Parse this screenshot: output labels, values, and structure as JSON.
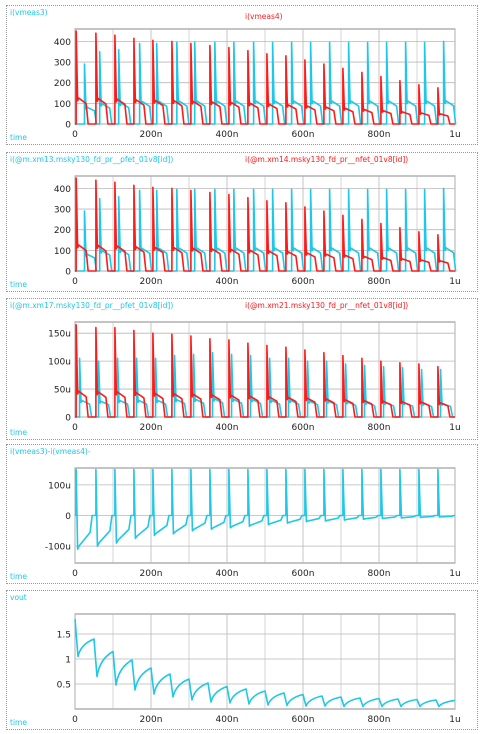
{
  "colors": {
    "cyan": "#1ec8e6",
    "red": "#ff1a1a",
    "grid": "#b8b8b8"
  },
  "x_axis_label": "time",
  "panels": [
    {
      "left_label": "i(vmeas3)",
      "right_label": "i(vmeas4)"
    },
    {
      "left_label": "i(@m.xm13.msky130_fd_pr__pfet_01v8[id])",
      "right_label": "i(@m.xm14.msky130_fd_pr__nfet_01v8[id])"
    },
    {
      "left_label": "i(@m.xm17.msky130_fd_pr__pfet_01v8[id])",
      "right_label": "i(@m.xm21.msky130_fd_pr__nfet_01v8[id])"
    },
    {
      "left_label": "i(vmeas3)-i(vmeas4)-",
      "right_label": ""
    },
    {
      "left_label": "vout",
      "right_label": ""
    }
  ],
  "chart_data": [
    {
      "type": "line",
      "x_ticks": [
        "0",
        "200n",
        "400n",
        "600n",
        "800n",
        "1u"
      ],
      "y_ticks": [
        "0",
        "100",
        "200",
        "300",
        "400"
      ],
      "xlim": [
        0,
        1000
      ],
      "ylim": [
        0,
        460
      ],
      "grid": true,
      "series": [
        {
          "name": "i(vmeas3)",
          "color": "#1ec8e6",
          "spikes": [
            [
              25,
              290
            ],
            [
              65,
              350
            ],
            [
              115,
              360
            ],
            [
              170,
              390
            ],
            [
              215,
              390
            ],
            [
              268,
              395
            ],
            [
              315,
              395
            ],
            [
              368,
              395
            ],
            [
              418,
              395
            ],
            [
              470,
              395
            ],
            [
              520,
              395
            ],
            [
              570,
              395
            ],
            [
              620,
              395
            ],
            [
              670,
              395
            ],
            [
              720,
              395
            ],
            [
              770,
              395
            ],
            [
              820,
              395
            ],
            [
              870,
              395
            ],
            [
              920,
              395
            ],
            [
              970,
              400
            ]
          ]
        },
        {
          "name": "i(vmeas4)",
          "color": "#ff1a1a",
          "spikes": [
            [
              3,
              450
            ],
            [
              55,
              440
            ],
            [
              105,
              430
            ],
            [
              155,
              415
            ],
            [
              205,
              405
            ],
            [
              255,
              400
            ],
            [
              305,
              390
            ],
            [
              355,
              380
            ],
            [
              405,
              370
            ],
            [
              455,
              355
            ],
            [
              505,
              340
            ],
            [
              555,
              330
            ],
            [
              605,
              310
            ],
            [
              655,
              290
            ],
            [
              705,
              270
            ],
            [
              755,
              250
            ],
            [
              805,
              230
            ],
            [
              855,
              210
            ],
            [
              905,
              190
            ],
            [
              955,
              175
            ]
          ]
        }
      ]
    },
    {
      "type": "line",
      "x_ticks": [
        "0",
        "200n",
        "400n",
        "600n",
        "800n",
        "1u"
      ],
      "y_ticks": [
        "0",
        "100",
        "200",
        "300",
        "400"
      ],
      "xlim": [
        0,
        1000
      ],
      "ylim": [
        0,
        460
      ],
      "grid": true,
      "series": [
        {
          "name": "i(@m.xm13.msky130_fd_pr__pfet_01v8[id])",
          "color": "#1ec8e6",
          "spikes": [
            [
              25,
              290
            ],
            [
              65,
              350
            ],
            [
              115,
              360
            ],
            [
              170,
              390
            ],
            [
              215,
              390
            ],
            [
              268,
              395
            ],
            [
              315,
              395
            ],
            [
              368,
              395
            ],
            [
              418,
              395
            ],
            [
              470,
              395
            ],
            [
              520,
              395
            ],
            [
              570,
              395
            ],
            [
              620,
              395
            ],
            [
              670,
              395
            ],
            [
              720,
              395
            ],
            [
              770,
              395
            ],
            [
              820,
              395
            ],
            [
              870,
              395
            ],
            [
              920,
              395
            ],
            [
              970,
              400
            ]
          ]
        },
        {
          "name": "i(@m.xm14.msky130_fd_pr__nfet_01v8[id])",
          "color": "#ff1a1a",
          "spikes": [
            [
              3,
              450
            ],
            [
              55,
              440
            ],
            [
              105,
              430
            ],
            [
              155,
              415
            ],
            [
              205,
              405
            ],
            [
              255,
              400
            ],
            [
              305,
              390
            ],
            [
              355,
              380
            ],
            [
              405,
              370
            ],
            [
              455,
              355
            ],
            [
              505,
              340
            ],
            [
              555,
              330
            ],
            [
              605,
              310
            ],
            [
              655,
              290
            ],
            [
              705,
              270
            ],
            [
              755,
              250
            ],
            [
              805,
              230
            ],
            [
              855,
              210
            ],
            [
              905,
              190
            ],
            [
              955,
              175
            ]
          ]
        }
      ]
    },
    {
      "type": "line",
      "x_ticks": [
        "0",
        "200n",
        "400n",
        "600n",
        "800n",
        "1u"
      ],
      "y_ticks": [
        "0",
        "50u",
        "100u",
        "150u"
      ],
      "xlim": [
        0,
        1000
      ],
      "ylim": [
        0,
        170
      ],
      "grid": true,
      "series": [
        {
          "name": "i(@m.xm17.msky130_fd_pr__pfet_01v8[id])",
          "color": "#1ec8e6",
          "spikes": [
            [
              12,
              105
            ],
            [
              62,
              100
            ],
            [
              112,
              105
            ],
            [
              162,
              105
            ],
            [
              212,
              105
            ],
            [
              262,
              110
            ],
            [
              312,
              112
            ],
            [
              362,
              115
            ],
            [
              412,
              112
            ],
            [
              462,
              110
            ],
            [
              512,
              105
            ],
            [
              562,
              105
            ],
            [
              612,
              100
            ],
            [
              662,
              100
            ],
            [
              712,
              95
            ],
            [
              762,
              92
            ],
            [
              812,
              90
            ],
            [
              862,
              88
            ],
            [
              912,
              85
            ],
            [
              962,
              85
            ]
          ]
        },
        {
          "name": "i(@m.xm21.msky130_fd_pr__nfet_01v8[id])",
          "color": "#ff1a1a",
          "spikes": [
            [
              3,
              165
            ],
            [
              55,
              160
            ],
            [
              105,
              160
            ],
            [
              155,
              155
            ],
            [
              205,
              150
            ],
            [
              255,
              148
            ],
            [
              305,
              145
            ],
            [
              355,
              140
            ],
            [
              405,
              138
            ],
            [
              455,
              132
            ],
            [
              505,
              128
            ],
            [
              555,
              125
            ],
            [
              605,
              120
            ],
            [
              655,
              115
            ],
            [
              705,
              110
            ],
            [
              755,
              105
            ],
            [
              805,
              100
            ],
            [
              855,
              97
            ],
            [
              905,
              95
            ],
            [
              955,
              90
            ]
          ]
        }
      ]
    },
    {
      "type": "line",
      "x_ticks": [
        "0",
        "200n",
        "400n",
        "600n",
        "800n",
        "1u"
      ],
      "y_ticks": [
        "-100u",
        "0",
        "100u"
      ],
      "xlim": [
        0,
        1000
      ],
      "ylim": [
        -155,
        155
      ],
      "grid": true,
      "series": [
        {
          "name": "i(vmeas3)-i(vmeas4)",
          "color": "#1ec8e6",
          "pulses": [
            [
              3,
              150,
              -110
            ],
            [
              55,
              150,
              -100
            ],
            [
              105,
              150,
              -90
            ],
            [
              155,
              150,
              -75
            ],
            [
              205,
              150,
              -65
            ],
            [
              255,
              150,
              -60
            ],
            [
              305,
              150,
              -50
            ],
            [
              355,
              150,
              -45
            ],
            [
              405,
              150,
              -40
            ],
            [
              455,
              150,
              -35
            ],
            [
              505,
              150,
              -30
            ],
            [
              555,
              150,
              -25
            ],
            [
              605,
              150,
              -20
            ],
            [
              655,
              150,
              -18
            ],
            [
              705,
              150,
              -15
            ],
            [
              755,
              150,
              -12
            ],
            [
              805,
              150,
              -10
            ],
            [
              855,
              150,
              -8
            ],
            [
              905,
              150,
              -6
            ],
            [
              955,
              150,
              -5
            ]
          ]
        }
      ]
    },
    {
      "type": "line",
      "x_ticks": [
        "0",
        "200n",
        "400n",
        "600n",
        "800n",
        "1u"
      ],
      "y_ticks": [
        "0.5",
        "1",
        "1.5"
      ],
      "xlim": [
        0,
        1000
      ],
      "ylim": [
        0,
        1.9
      ],
      "grid": true,
      "series": [
        {
          "name": "vout",
          "color": "#1ec8e6",
          "sawtooth": [
            [
              0,
              1.8,
              1.05
            ],
            [
              50,
              1.4,
              0.65
            ],
            [
              100,
              1.15,
              0.48
            ],
            [
              150,
              0.98,
              0.38
            ],
            [
              200,
              0.82,
              0.3
            ],
            [
              250,
              0.7,
              0.24
            ],
            [
              300,
              0.6,
              0.18
            ],
            [
              350,
              0.52,
              0.14
            ],
            [
              400,
              0.45,
              0.12
            ],
            [
              450,
              0.4,
              0.1
            ],
            [
              500,
              0.36,
              0.08
            ],
            [
              550,
              0.32,
              0.07
            ],
            [
              600,
              0.29,
              0.06
            ],
            [
              650,
              0.26,
              0.06
            ],
            [
              700,
              0.24,
              0.05
            ],
            [
              750,
              0.22,
              0.05
            ],
            [
              800,
              0.21,
              0.05
            ],
            [
              850,
              0.2,
              0.05
            ],
            [
              900,
              0.19,
              0.05
            ],
            [
              950,
              0.18,
              0.05
            ]
          ]
        }
      ]
    }
  ]
}
